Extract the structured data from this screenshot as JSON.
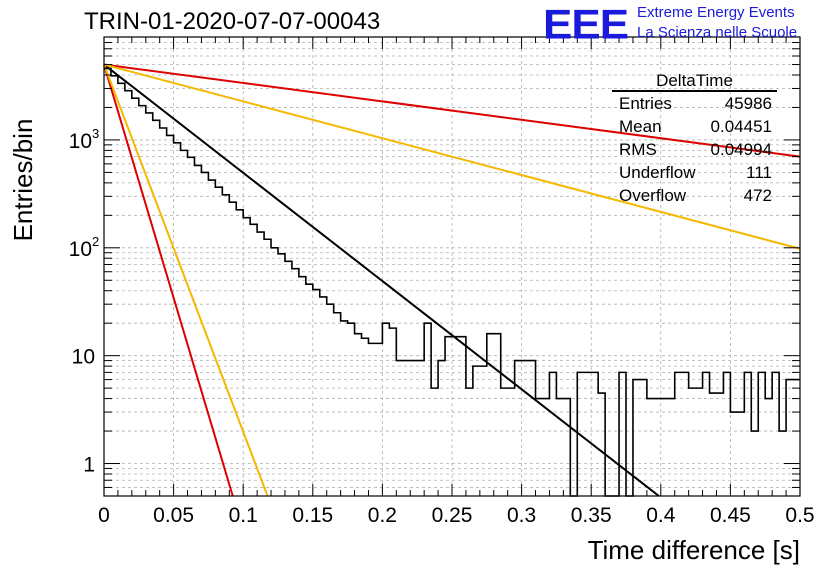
{
  "header": {
    "title": "TRIN-01-2020-07-07-00043",
    "logo": "EEE",
    "logo_line1": "Extreme Energy Events",
    "logo_line2": "La Scienza nelle Scuole"
  },
  "stats": {
    "title": "DeltaTime",
    "rows": [
      {
        "label": "Entries",
        "value": "45986"
      },
      {
        "label": "Mean",
        "value": "0.04451"
      },
      {
        "label": "RMS",
        "value": "0.04994"
      },
      {
        "label": "Underflow",
        "value": "111"
      },
      {
        "label": "Overflow",
        "value": "472"
      }
    ]
  },
  "chart_data": {
    "type": "line",
    "title": "TRIN-01-2020-07-07-00043",
    "xlabel": "Time difference [s]",
    "ylabel": "Entries/bin",
    "xlim": [
      0,
      0.5
    ],
    "ylim": [
      0.5,
      9000
    ],
    "yscale": "log",
    "grid": true,
    "x_ticks": [
      "0",
      "0.05",
      "0.1",
      "0.15",
      "0.2",
      "0.25",
      "0.3",
      "0.35",
      "0.4",
      "0.45",
      "0.5"
    ],
    "y_ticks": [
      {
        "value": 1,
        "label": "1"
      },
      {
        "value": 10,
        "label": "10"
      },
      {
        "value": 100,
        "label": "10",
        "exp": "2"
      },
      {
        "value": 1000,
        "label": "10",
        "exp": "3"
      }
    ],
    "legend_position": "top-right",
    "histogram": {
      "bin_width": 0.005,
      "values": [
        4600,
        3930,
        3350,
        2860,
        2440,
        2080,
        1780,
        1520,
        1290,
        1100,
        940,
        800,
        690,
        580,
        500,
        425,
        365,
        310,
        265,
        225,
        190,
        165,
        140,
        120,
        100,
        88,
        75,
        64,
        54,
        46,
        41,
        35,
        30,
        25,
        21,
        20,
        16,
        14.5,
        13,
        13,
        20,
        18,
        9,
        9,
        9,
        9,
        20,
        5,
        9,
        15,
        15,
        15,
        5,
        8,
        8,
        16,
        16,
        5,
        5,
        9,
        9,
        9,
        4,
        4,
        7,
        4,
        4,
        0.5,
        7,
        7,
        7,
        4.5,
        0.5,
        0.5,
        7,
        0.5,
        6,
        6,
        4,
        4,
        4,
        4,
        7,
        7,
        5,
        5,
        7,
        4.5,
        4.5,
        7,
        3,
        3,
        7,
        2,
        7,
        4,
        7,
        2,
        6,
        6
      ]
    },
    "fit_lines": [
      {
        "color": "#000000",
        "y0": 5000,
        "x1": 0.3986,
        "y1": 0.5
      },
      {
        "color": "#dd0000",
        "y0": 5000,
        "x1": 0.5,
        "y1": 700
      },
      {
        "color": "#f5b800",
        "y0": 5000,
        "x1": 0.5,
        "y1": 98
      },
      {
        "color": "#dd0000",
        "y0": 5000,
        "x1": 0.0925,
        "y1": 0.5
      },
      {
        "color": "#f5b800",
        "y0": 5000,
        "x1": 0.1175,
        "y1": 0.5
      }
    ]
  }
}
